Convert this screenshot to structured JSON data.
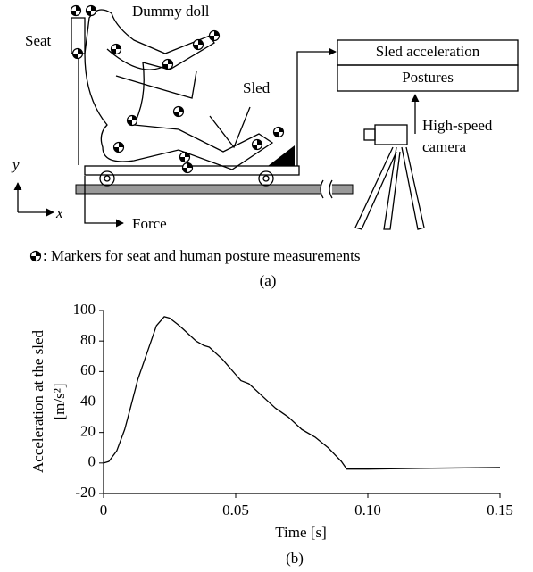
{
  "diagram": {
    "dummy": "Dummy doll",
    "seat": "Seat",
    "sled": "Sled",
    "box_top": "Sled acceleration",
    "box_bottom": "Postures",
    "camera": [
      "High-speed",
      "camera"
    ],
    "force": "Force",
    "axis_x": "x",
    "axis_y": "y",
    "legend": ": Markers for seat and human posture measurements",
    "caption": "(a)"
  },
  "chart_data": {
    "type": "line",
    "caption": "(b)",
    "xlabel": "Time [s]",
    "ylabel": [
      "Acceleration at the sled",
      "[m/s²]"
    ],
    "x": [
      0,
      0.002,
      0.005,
      0.008,
      0.01,
      0.013,
      0.015,
      0.018,
      0.02,
      0.023,
      0.025,
      0.028,
      0.03,
      0.035,
      0.038,
      0.04,
      0.045,
      0.05,
      0.052,
      0.055,
      0.06,
      0.065,
      0.07,
      0.075,
      0.08,
      0.085,
      0.09,
      0.092,
      0.1,
      0.12,
      0.15
    ],
    "values": [
      0,
      1,
      8,
      22,
      35,
      55,
      65,
      80,
      90,
      96,
      95,
      91,
      88,
      80,
      77,
      76,
      68,
      58,
      54,
      52,
      44,
      36,
      30,
      22,
      17,
      10,
      1,
      -4,
      -4,
      -3.5,
      -3
    ],
    "color": "#000000",
    "xlim": [
      0,
      0.15
    ],
    "xticks": [
      0,
      0.05,
      {
        "value": 0.1,
        "label": "0.10"
      },
      0.15
    ],
    "ylim": [
      -20,
      100
    ],
    "yticks": [
      -20,
      0,
      20,
      40,
      60,
      80,
      100
    ]
  }
}
